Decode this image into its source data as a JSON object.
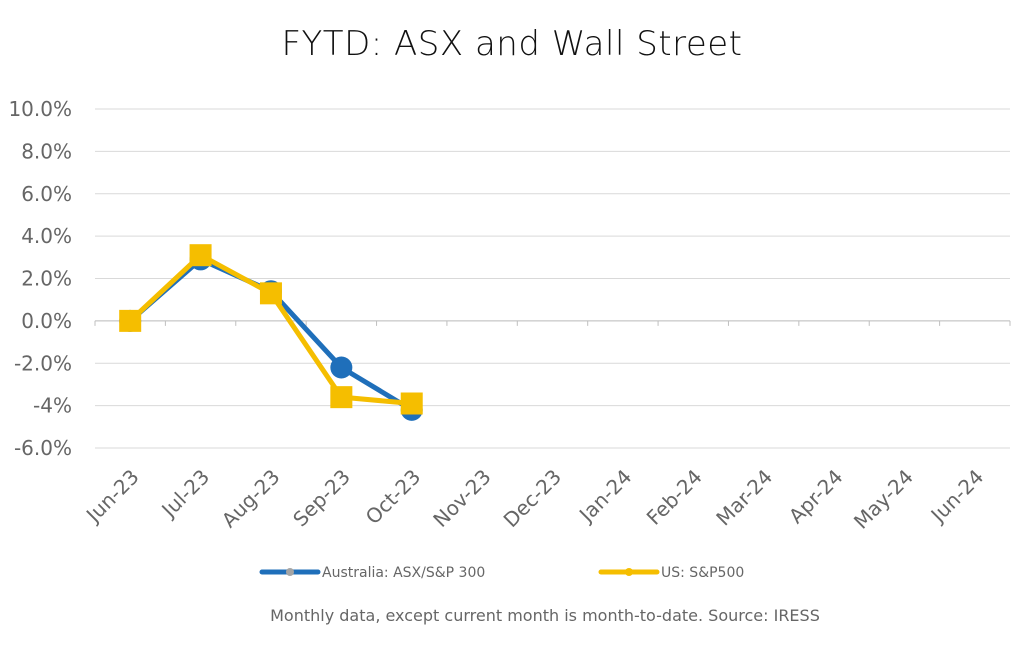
{
  "chart_data": {
    "type": "line",
    "title": "FYTD: ASX and Wall Street",
    "categories": [
      "Jun-23",
      "Jul-23",
      "Aug-23",
      "Sep-23",
      "Oct-23",
      "Nov-23",
      "Dec-23",
      "Jan-24",
      "Feb-24",
      "Mar-24",
      "Apr-24",
      "May-24",
      "Jun-24"
    ],
    "series": [
      {
        "name": "Australia: ASX/S&P 300",
        "color": "#1f6fba",
        "marker": "circle",
        "values": [
          0.0,
          2.9,
          1.4,
          -2.2,
          -4.2,
          null,
          null,
          null,
          null,
          null,
          null,
          null,
          null
        ]
      },
      {
        "name": "US: S&P500",
        "color": "#f5be00",
        "marker": "square",
        "values": [
          0.0,
          3.1,
          1.3,
          -3.6,
          -3.9,
          null,
          null,
          null,
          null,
          null,
          null,
          null,
          null
        ]
      }
    ],
    "ylim": [
      -6.0,
      10.0
    ],
    "yticks": [
      10.0,
      8.0,
      6.0,
      4.0,
      2.0,
      0.0,
      -2.0,
      -4.0,
      -6.0
    ],
    "ytick_labels": [
      "10.0%",
      "8.0%",
      "6.0%",
      "4.0%",
      "2.0%",
      "0.0%",
      "-2.0%",
      "-4%",
      "-6.0%"
    ],
    "grid": true,
    "legend": "bottom"
  },
  "footnote": "Monthly data, except current month is month-to-date.  Source: IRESS"
}
